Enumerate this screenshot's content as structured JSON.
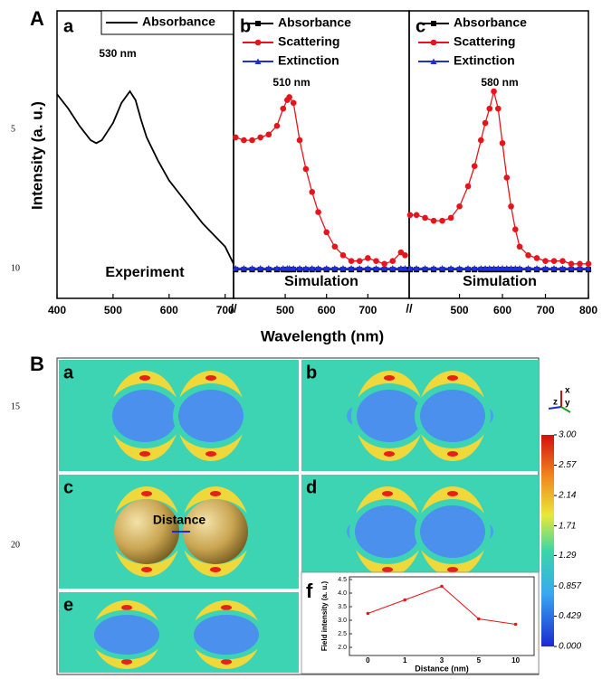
{
  "line_numbers": [
    "5",
    "10",
    "15",
    "20"
  ],
  "figure_labels": [
    "A",
    "B"
  ],
  "shared_axes": {
    "x_label": "Wavelength (nm)",
    "y_label": "Intensity (a. u.)"
  },
  "chart_data": [
    {
      "type": "line",
      "panel_label": "a",
      "annotations": [
        "530 nm",
        "Experiment"
      ],
      "x": [
        400,
        420,
        440,
        460,
        470,
        480,
        500,
        515,
        530,
        540,
        550,
        560,
        580,
        600,
        620,
        640,
        660,
        680,
        700,
        715
      ],
      "xlim": [
        400,
        715
      ],
      "xticks": [
        400,
        500,
        600,
        700
      ],
      "ylim": [
        0,
        1
      ],
      "series": [
        {
          "name": "Absorbance",
          "color": "#000000",
          "marker": "none",
          "values": [
            0.71,
            0.66,
            0.6,
            0.55,
            0.54,
            0.55,
            0.61,
            0.68,
            0.72,
            0.69,
            0.62,
            0.56,
            0.48,
            0.41,
            0.36,
            0.31,
            0.26,
            0.22,
            0.18,
            0.12
          ]
        }
      ]
    },
    {
      "type": "line",
      "panel_label": "b",
      "annotations": [
        "510 nm",
        "Simulation"
      ],
      "x": [
        380,
        400,
        420,
        440,
        460,
        480,
        495,
        505,
        510,
        520,
        535,
        550,
        565,
        580,
        600,
        620,
        640,
        660,
        680,
        700,
        720,
        740,
        760,
        780,
        790
      ],
      "xlim": [
        375,
        800
      ],
      "xticks": [
        500,
        600,
        700
      ],
      "ylim": [
        0,
        1
      ],
      "series": [
        {
          "name": "Absorbance",
          "color": "#000000",
          "marker": "square",
          "values": [
            0.1,
            0.1,
            0.1,
            0.1,
            0.1,
            0.1,
            0.1,
            0.1,
            0.1,
            0.1,
            0.1,
            0.1,
            0.1,
            0.1,
            0.1,
            0.1,
            0.1,
            0.1,
            0.1,
            0.1,
            0.1,
            0.1,
            0.1,
            0.1,
            0.1
          ]
        },
        {
          "name": "Scattering",
          "color": "#e8141c",
          "marker": "circle",
          "values": [
            0.56,
            0.55,
            0.55,
            0.56,
            0.57,
            0.6,
            0.66,
            0.69,
            0.7,
            0.68,
            0.55,
            0.45,
            0.37,
            0.3,
            0.23,
            0.18,
            0.15,
            0.13,
            0.13,
            0.14,
            0.13,
            0.12,
            0.13,
            0.16,
            0.15
          ]
        },
        {
          "name": "Extinction",
          "color": "#1f2fd6",
          "marker": "triangle",
          "values": [
            0.105,
            0.105,
            0.105,
            0.105,
            0.105,
            0.105,
            0.105,
            0.105,
            0.105,
            0.105,
            0.105,
            0.105,
            0.105,
            0.105,
            0.105,
            0.105,
            0.105,
            0.105,
            0.105,
            0.105,
            0.105,
            0.105,
            0.105,
            0.105,
            0.105
          ]
        }
      ]
    },
    {
      "type": "line",
      "panel_label": "c",
      "annotations": [
        "580 nm",
        "Simulation"
      ],
      "x": [
        385,
        400,
        420,
        440,
        460,
        480,
        500,
        520,
        535,
        550,
        560,
        570,
        580,
        590,
        600,
        610,
        620,
        630,
        640,
        660,
        680,
        700,
        720,
        740,
        760,
        780,
        800
      ],
      "xlim": [
        383,
        800
      ],
      "xticks": [
        500,
        600,
        700,
        800
      ],
      "ylim": [
        0,
        1
      ],
      "series": [
        {
          "name": "Absorbance",
          "color": "#000000",
          "marker": "square",
          "values": [
            0.1,
            0.1,
            0.1,
            0.1,
            0.1,
            0.1,
            0.1,
            0.1,
            0.1,
            0.1,
            0.1,
            0.1,
            0.1,
            0.1,
            0.1,
            0.1,
            0.1,
            0.1,
            0.1,
            0.1,
            0.1,
            0.1,
            0.1,
            0.1,
            0.1,
            0.1,
            0.1
          ]
        },
        {
          "name": "Scattering",
          "color": "#e8141c",
          "marker": "circle",
          "values": [
            0.29,
            0.29,
            0.28,
            0.27,
            0.27,
            0.28,
            0.32,
            0.39,
            0.46,
            0.55,
            0.61,
            0.66,
            0.72,
            0.66,
            0.54,
            0.42,
            0.32,
            0.24,
            0.18,
            0.15,
            0.14,
            0.13,
            0.13,
            0.13,
            0.12,
            0.12,
            0.12
          ]
        },
        {
          "name": "Extinction",
          "color": "#1f2fd6",
          "marker": "triangle",
          "values": [
            0.105,
            0.105,
            0.105,
            0.105,
            0.105,
            0.105,
            0.105,
            0.105,
            0.105,
            0.105,
            0.105,
            0.105,
            0.105,
            0.105,
            0.105,
            0.105,
            0.105,
            0.105,
            0.105,
            0.105,
            0.105,
            0.105,
            0.105,
            0.105,
            0.105,
            0.105,
            0.105
          ]
        }
      ]
    },
    {
      "type": "line",
      "panel_label": "f",
      "x_label": "Distance (nm)",
      "y_label": "Field intensity (a. u.)",
      "categories": [
        "0",
        "1",
        "3",
        "5",
        "10"
      ],
      "values": [
        3.25,
        3.75,
        4.25,
        3.05,
        2.85
      ],
      "color": "#e8141c",
      "ylim": [
        1.7,
        4.6
      ],
      "yticks": [
        {
          "value": 2,
          "label": "2.0"
        },
        2.5,
        {
          "value": 3,
          "label": "3.0"
        },
        3.5,
        {
          "value": 4,
          "label": "4.0"
        },
        4.5
      ]
    }
  ],
  "field_maps": {
    "panels": [
      "a",
      "b",
      "c",
      "d",
      "e"
    ],
    "distance_label": "Distance",
    "axis_labels": [
      "x",
      "z",
      "y"
    ]
  },
  "colorbar": {
    "lim": [
      0,
      3
    ],
    "ticks": [
      {
        "value": 3,
        "label": "3.00"
      },
      2.57,
      2.14,
      1.71,
      1.29,
      0.857,
      0.429,
      {
        "value": 0,
        "label": "0.000"
      }
    ]
  }
}
